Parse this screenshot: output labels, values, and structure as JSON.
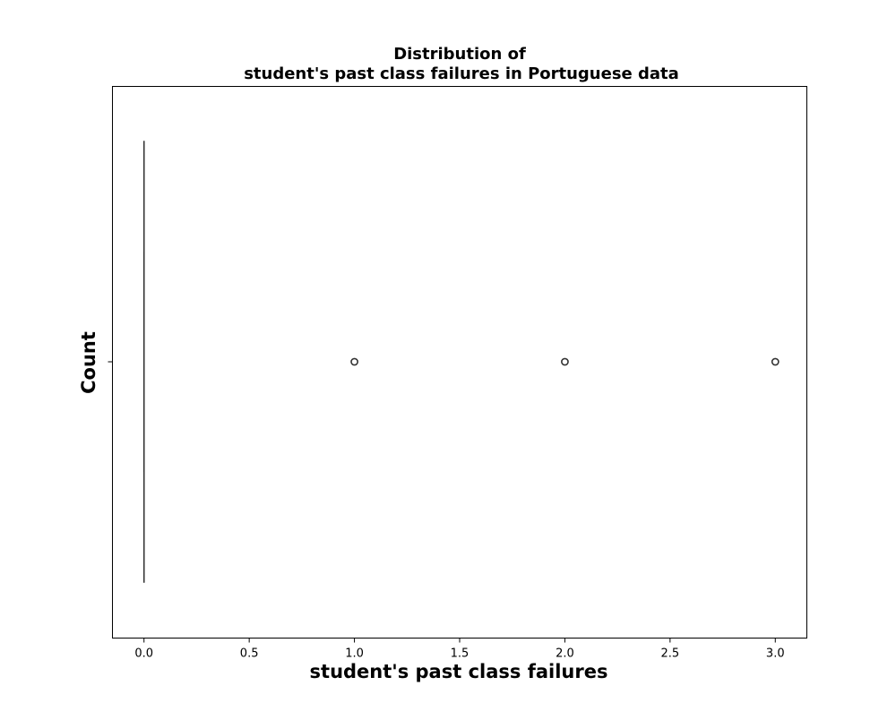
{
  "chart_data": {
    "type": "box",
    "orientation": "horizontal",
    "title_lines": [
      "Distribution of",
      "student's past class failures in Portuguese data"
    ],
    "xlabel": "student's past class failures",
    "ylabel": "Count",
    "xlim": [
      -0.15,
      3.15
    ],
    "x_ticks": [
      {
        "value": 0.0,
        "label": "0.0"
      },
      {
        "value": 0.5,
        "label": "0.5"
      },
      {
        "value": 1.0,
        "label": "1.0"
      },
      {
        "value": 1.5,
        "label": "1.5"
      },
      {
        "value": 2.0,
        "label": "2.0"
      },
      {
        "value": 2.5,
        "label": "2.5"
      },
      {
        "value": 3.0,
        "label": "3.0"
      }
    ],
    "grid": false,
    "legend": "none",
    "box": {
      "min": 0,
      "q1": 0,
      "median": 0,
      "q3": 0,
      "max": 0
    },
    "outliers": [
      1,
      2,
      3
    ],
    "colors": {
      "box_line": "#333333",
      "axis": "#000000",
      "text": "#000000"
    }
  }
}
